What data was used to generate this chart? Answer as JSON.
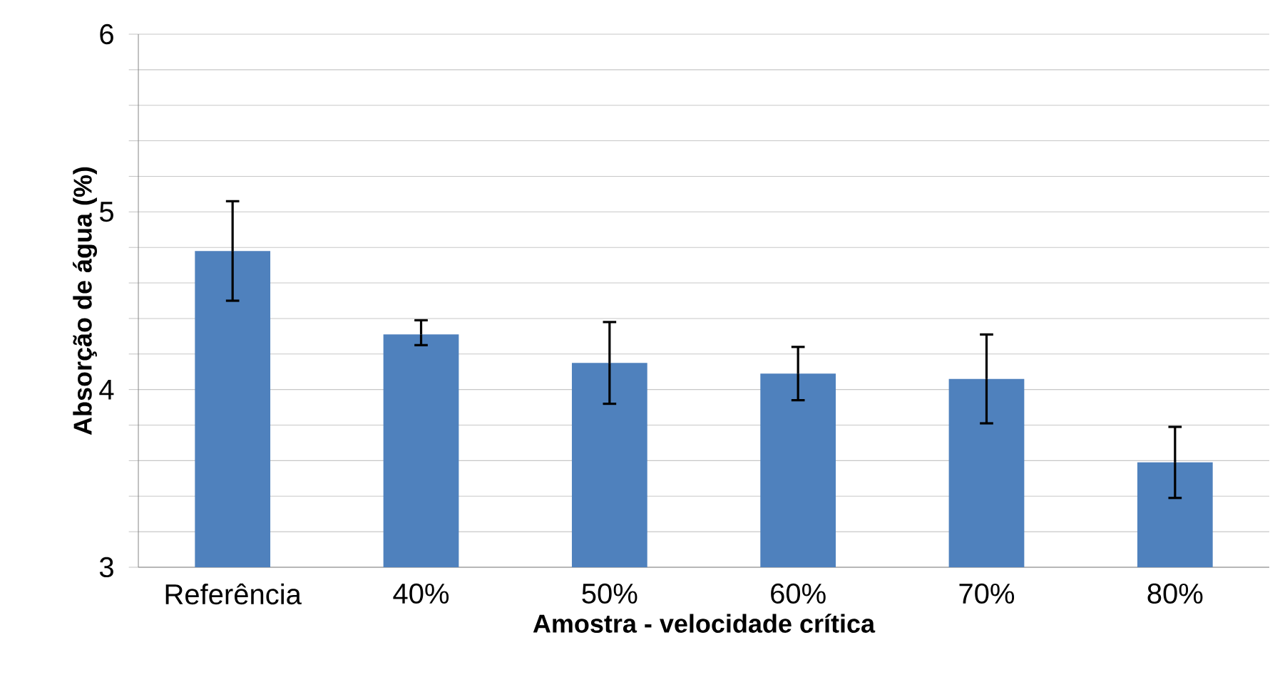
{
  "chart_data": {
    "type": "bar",
    "xlabel": "Amostra - velocidade crítica",
    "ylabel": "Absorção de água (%)",
    "categories": [
      "Referência",
      "40%",
      "50%",
      "60%",
      "70%",
      "80%"
    ],
    "values": [
      4.78,
      4.31,
      4.15,
      4.09,
      4.06,
      3.59
    ],
    "errors": [
      [
        4.5,
        5.06
      ],
      [
        4.25,
        4.39
      ],
      [
        3.92,
        4.38
      ],
      [
        3.94,
        4.24
      ],
      [
        3.81,
        4.31
      ],
      [
        3.39,
        3.79
      ]
    ],
    "color": "#4f81bd",
    "ylim": [
      3,
      6
    ],
    "yticks": [
      3,
      {
        "value": 3.2,
        "label": null
      },
      {
        "value": 3.4,
        "label": null
      },
      {
        "value": 3.6,
        "label": null
      },
      {
        "value": 3.8,
        "label": null
      },
      4,
      {
        "value": 4.2,
        "label": null
      },
      {
        "value": 4.4,
        "label": null
      },
      {
        "value": 4.6,
        "label": null
      },
      {
        "value": 4.8,
        "label": null
      },
      5,
      {
        "value": 5.2,
        "label": null
      },
      {
        "value": 5.4,
        "label": null
      },
      {
        "value": 5.6,
        "label": null
      },
      {
        "value": 5.8,
        "label": null
      },
      6
    ],
    "grid": "y"
  }
}
